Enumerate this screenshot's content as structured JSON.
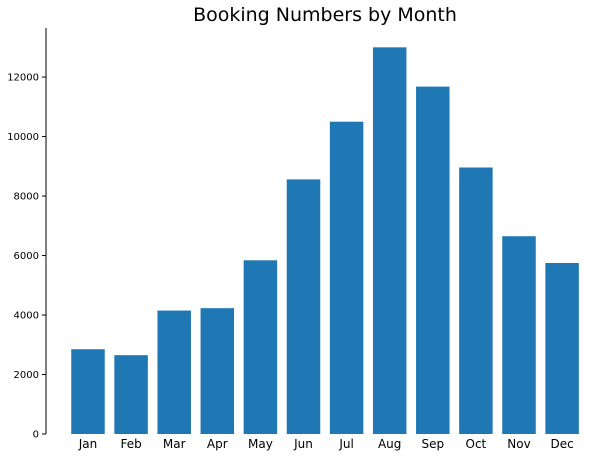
{
  "chart_data": {
    "type": "bar",
    "title": "Booking Numbers by Month",
    "xlabel": "",
    "ylabel": "",
    "categories": [
      "Jan",
      "Feb",
      "Mar",
      "Apr",
      "May",
      "Jun",
      "Jul",
      "Aug",
      "Sep",
      "Oct",
      "Nov",
      "Dec"
    ],
    "values": [
      2850,
      2650,
      4150,
      4230,
      5840,
      8560,
      10500,
      13000,
      11680,
      8960,
      6650,
      5750
    ],
    "ylim": [
      0,
      13650
    ],
    "yticks": [
      "0",
      "2000",
      "4000",
      "6000",
      "8000",
      "10000",
      "12000"
    ],
    "grid": false,
    "legend": "none",
    "bar_color": "#1f77b4",
    "axis_color": "#000000"
  }
}
